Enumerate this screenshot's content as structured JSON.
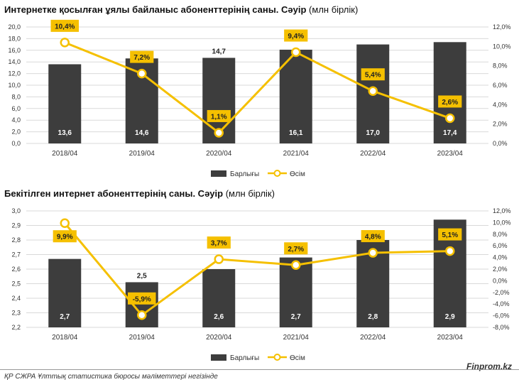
{
  "colors": {
    "bar": "#3d3d3d",
    "line": "#f5c000",
    "label_bg": "#f5c000",
    "grid": "#d9d9d9"
  },
  "chart_data": [
    {
      "type": "bar",
      "title_bold": "Интернетке қосылған ұялы байланыс абоненттерінің саны. Сәуір",
      "title_rest": " (млн бірлік)",
      "categories": [
        "2018/04",
        "2019/04",
        "2020/04",
        "2021/04",
        "2022/04",
        "2023/04"
      ],
      "bars": {
        "name": "Барлығы",
        "values": [
          13.6,
          14.6,
          14.7,
          16.1,
          17.0,
          17.4
        ],
        "labels": [
          "13,6",
          "14,6",
          "14,7",
          "16,1",
          "17,0",
          "17,4"
        ]
      },
      "line": {
        "name": "Өсім",
        "values": [
          10.4,
          7.2,
          1.1,
          9.4,
          5.4,
          2.6
        ],
        "labels": [
          "10,4%",
          "7,2%",
          "1,1%",
          "9,4%",
          "5,4%",
          "2,6%"
        ]
      },
      "ylim": [
        0,
        20
      ],
      "y2lim": [
        0,
        12
      ],
      "yticks": [
        "0,0",
        "2,0",
        "4,0",
        "6,0",
        "8,0",
        "10,0",
        "12,0",
        "14,0",
        "16,0",
        "18,0",
        "20,0"
      ],
      "y2ticks": [
        "0,0%",
        "2,0%",
        "4,0%",
        "6,0%",
        "8,0%",
        "10,0%",
        "12,0%"
      ],
      "legend": "bottom"
    },
    {
      "type": "bar",
      "title_bold": "Бекітілген интернет абоненттерінің саны. Сәуір",
      "title_rest": " (млн бірлік)",
      "categories": [
        "2018/04",
        "2019/04",
        "2020/04",
        "2021/04",
        "2022/04",
        "2023/04"
      ],
      "bars": {
        "name": "Барлығы",
        "values": [
          2.67,
          2.51,
          2.6,
          2.68,
          2.8,
          2.94
        ],
        "labels": [
          "2,7",
          "2,5",
          "2,6",
          "2,7",
          "2,8",
          "2,9"
        ]
      },
      "line": {
        "name": "Өсім",
        "values": [
          9.9,
          -5.9,
          3.7,
          2.7,
          4.8,
          5.1
        ],
        "labels": [
          "9,9%",
          "-5,9%",
          "3,7%",
          "2,7%",
          "4,8%",
          "5,1%"
        ]
      },
      "ylim": [
        2.2,
        3.0
      ],
      "y2lim": [
        -8,
        12
      ],
      "yticks": [
        "2,2",
        "2,3",
        "2,4",
        "2,5",
        "2,6",
        "2,7",
        "2,8",
        "2,9",
        "3,0"
      ],
      "y2ticks": [
        "-8,0%",
        "-6,0%",
        "-4,0%",
        "-2,0%",
        "0,0%",
        "2,0%",
        "4,0%",
        "6,0%",
        "8,0%",
        "10,0%",
        "12,0%"
      ],
      "legend": "bottom"
    }
  ],
  "footer": {
    "source": "ҚР СЖРА Ұлттық статистика бюросы мәліметтері негізінде",
    "brand": "Finprom.kz"
  }
}
